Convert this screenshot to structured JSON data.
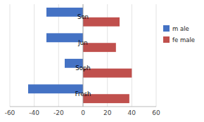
{
  "chart_data": {
    "type": "bar",
    "orientation": "horizontal",
    "categories": [
      "Fresh",
      "Soph",
      "Jun",
      "Sen"
    ],
    "series": [
      {
        "name": "m ale",
        "color": "#4472C4",
        "values": [
          -45,
          -15,
          -30,
          -30
        ]
      },
      {
        "name": "fe male",
        "color": "#C0504D",
        "values": [
          38,
          40,
          27,
          30
        ]
      }
    ],
    "xlim": [
      -60,
      60
    ],
    "xticks": [
      -60,
      -40,
      -20,
      0,
      20,
      40,
      60
    ],
    "grid": true,
    "legend": "right"
  }
}
